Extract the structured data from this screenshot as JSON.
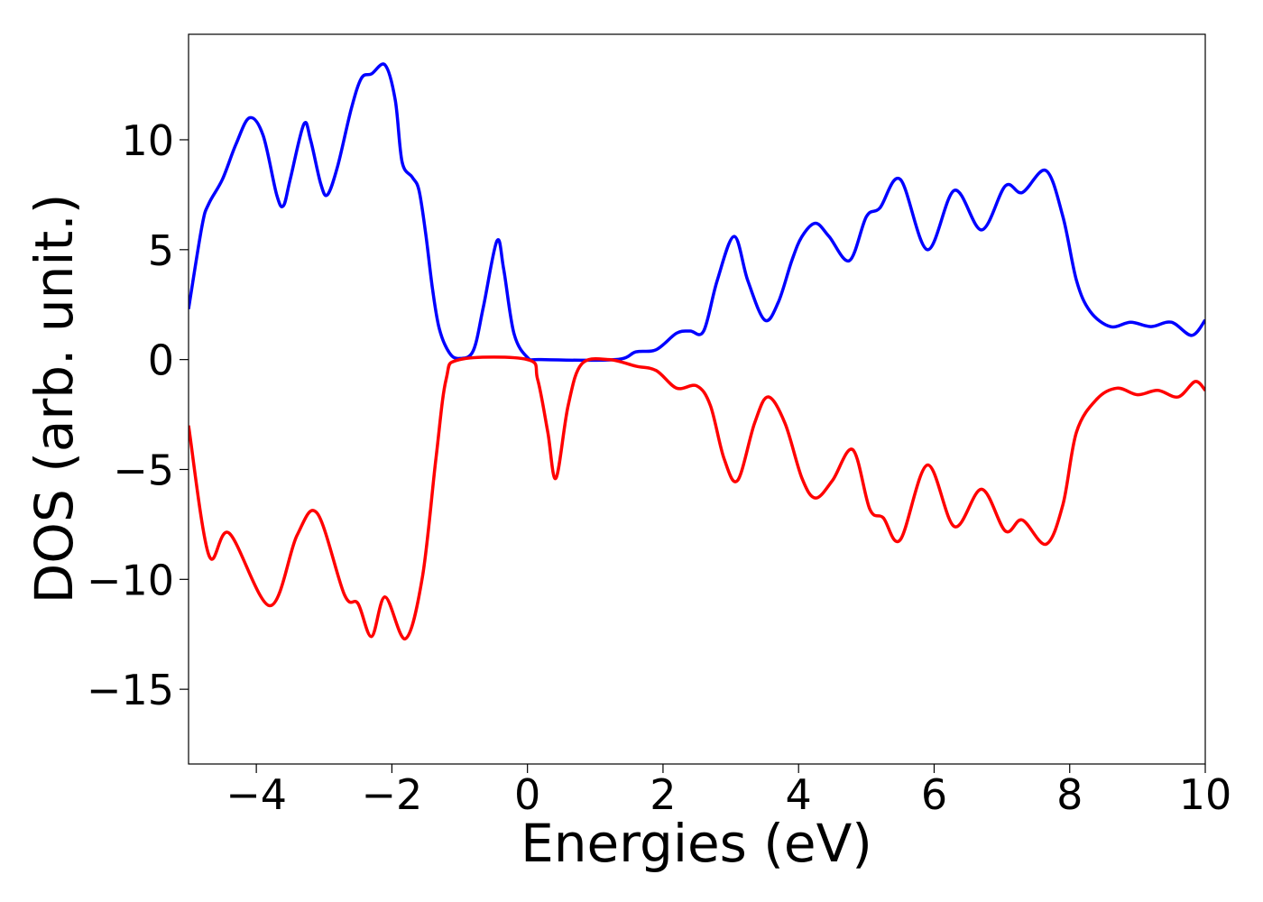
{
  "chart_data": {
    "type": "line",
    "xlabel": "Energies (eV)",
    "ylabel": "DOS (arb. unit.)",
    "xlim": [
      -5,
      10
    ],
    "ylim": [
      -18.4,
      14.8
    ],
    "xticks": [
      {
        "value": -4,
        "label": "−4"
      },
      {
        "value": -2,
        "label": "−2"
      },
      0,
      2,
      4,
      6,
      8,
      10
    ],
    "yticks": [
      {
        "value": -15,
        "label": "−15"
      },
      {
        "value": -10,
        "label": "−10"
      },
      {
        "value": -5,
        "label": "−5"
      },
      0,
      5,
      10
    ],
    "grid": false,
    "series": [
      {
        "color": "#0000ff",
        "x": [
          -5,
          -4.8,
          -4.7,
          -4.5,
          -4.3,
          -4.1,
          -3.9,
          -3.7,
          -3.6,
          -3.5,
          -3.3,
          -3.2,
          -3.05,
          -2.95,
          -2.8,
          -2.6,
          -2.45,
          -2.3,
          -2.1,
          -1.95,
          -1.85,
          -1.7,
          -1.6,
          -1.5,
          -1.4,
          -1.3,
          -1.15,
          -1,
          -0.8,
          -0.65,
          -0.45,
          -0.35,
          -0.2,
          0,
          0.2,
          1.3,
          1.6,
          1.9,
          2.2,
          2.4,
          2.6,
          2.8,
          3.05,
          3.25,
          3.5,
          3.7,
          3.9,
          4.05,
          4.25,
          4.45,
          4.75,
          5,
          5.2,
          5.5,
          5.9,
          6.3,
          6.7,
          7.05,
          7.3,
          7.65,
          7.9,
          8.1,
          8.3,
          8.6,
          8.9,
          9.2,
          9.5,
          9.8,
          10
        ],
        "values": [
          2.3,
          6.1,
          7.1,
          8.2,
          9.8,
          11,
          10.2,
          7.5,
          7,
          8.2,
          10.7,
          10,
          8,
          7.5,
          8.8,
          11.4,
          12.8,
          13,
          13.4,
          11.8,
          9,
          8.3,
          7.7,
          5.7,
          3.2,
          1.4,
          0.3,
          0.05,
          0.4,
          2.4,
          5.4,
          4.1,
          1.2,
          0.1,
          0,
          0,
          0.35,
          0.45,
          1.2,
          1.3,
          1.3,
          3.6,
          5.6,
          3.6,
          1.8,
          2.6,
          4.5,
          5.6,
          6.2,
          5.6,
          4.5,
          6.5,
          6.9,
          8.2,
          5,
          7.7,
          5.9,
          7.9,
          7.6,
          8.6,
          6.5,
          3.6,
          2.2,
          1.5,
          1.7,
          1.5,
          1.7,
          1.1,
          1.8
        ]
      },
      {
        "color": "#ff0000",
        "x": [
          -5,
          -4.7,
          -4.4,
          -3.8,
          -3.4,
          -3.1,
          -2.7,
          -2.5,
          -2.3,
          -2.1,
          -1.8,
          -1.55,
          -1.35,
          -1.2,
          -1,
          0,
          0.15,
          0.3,
          0.42,
          0.6,
          0.8,
          1.2,
          1.6,
          1.9,
          2.2,
          2.5,
          2.7,
          2.9,
          3.1,
          3.35,
          3.55,
          3.8,
          4.05,
          4.25,
          4.5,
          4.8,
          5.05,
          5.25,
          5.5,
          5.9,
          6.3,
          6.7,
          7.05,
          7.3,
          7.65,
          7.9,
          8.1,
          8.4,
          8.7,
          9,
          9.3,
          9.6,
          9.85,
          10
        ],
        "values": [
          -3,
          -8.9,
          -7.9,
          -11.2,
          -8,
          -7,
          -10.7,
          -11.1,
          -12.6,
          -10.8,
          -12.7,
          -9.9,
          -4.5,
          -0.9,
          0,
          0,
          -0.9,
          -3.3,
          -5.4,
          -2.1,
          -0.2,
          0,
          -0.3,
          -0.5,
          -1.3,
          -1.2,
          -2.1,
          -4.5,
          -5.5,
          -2.9,
          -1.7,
          -2.9,
          -5.4,
          -6.3,
          -5.5,
          -4.1,
          -6.8,
          -7.2,
          -8.2,
          -4.8,
          -7.6,
          -5.9,
          -7.8,
          -7.3,
          -8.4,
          -6.6,
          -3.3,
          -1.8,
          -1.3,
          -1.6,
          -1.4,
          -1.7,
          -1,
          -1.4
        ]
      }
    ]
  }
}
